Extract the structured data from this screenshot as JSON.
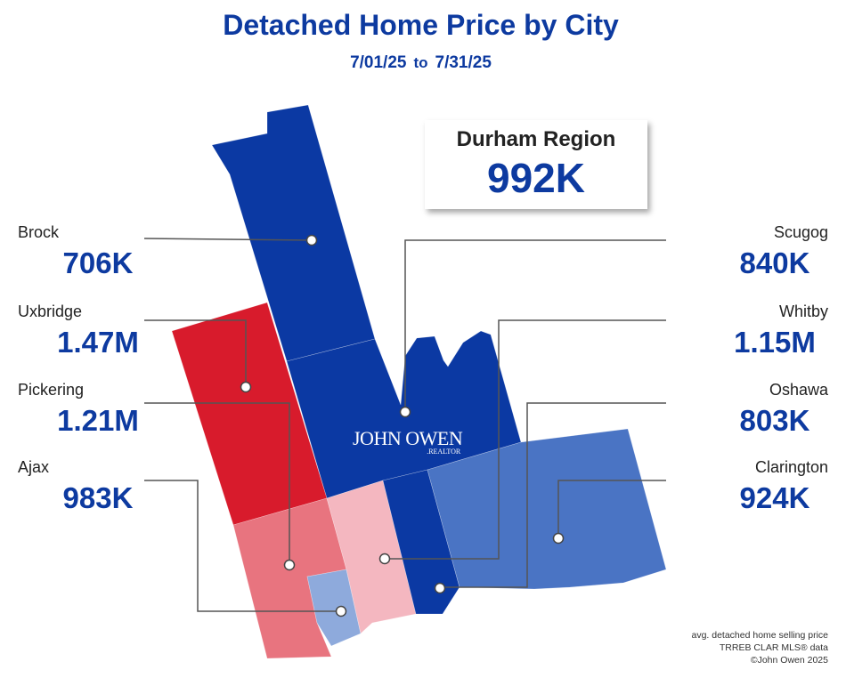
{
  "title": "Detached Home Price by City",
  "date_from": "7/01/25",
  "date_to_word": "to",
  "date_to": "7/31/25",
  "summary": {
    "name": "Durham Region",
    "value": "992K"
  },
  "cities": [
    {
      "name": "Brock",
      "value": "706K",
      "color": "#0b39a3"
    },
    {
      "name": "Uxbridge",
      "value": "1.47M",
      "color": "#d81b2c"
    },
    {
      "name": "Pickering",
      "value": "1.21M",
      "color": "#e8747f"
    },
    {
      "name": "Ajax",
      "value": "983K",
      "color": "#8eaadc"
    },
    {
      "name": "Scugog",
      "value": "840K",
      "color": "#0b39a3"
    },
    {
      "name": "Whitby",
      "value": "1.15M",
      "color": "#f4b7c0"
    },
    {
      "name": "Oshawa",
      "value": "803K",
      "color": "#0b39a3"
    },
    {
      "name": "Clarington",
      "value": "924K",
      "color": "#4a74c4"
    }
  ],
  "logo": {
    "text": "JOHN OWEN",
    "sub": ".REALTOR"
  },
  "footer": [
    "avg. detached home selling price",
    "TRREB CLAR MLS® data",
    "©John Owen 2025"
  ]
}
